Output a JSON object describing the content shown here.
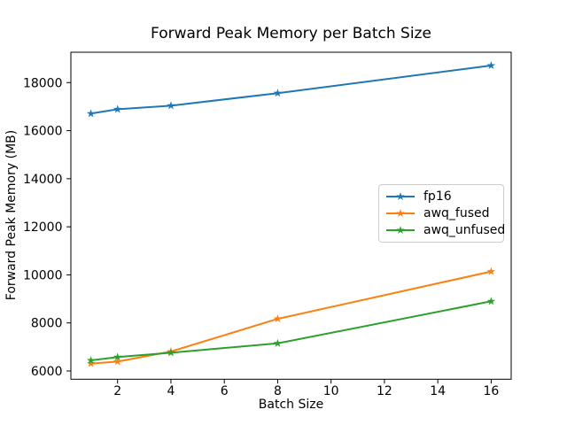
{
  "figure": {
    "background": "#ffffff"
  },
  "chart_data": {
    "type": "line",
    "title": "Forward Peak Memory per Batch Size",
    "xlabel": "Batch Size",
    "ylabel": "Forward Peak Memory (MB)",
    "x": [
      1,
      2,
      4,
      8,
      16
    ],
    "series": [
      {
        "name": "fp16",
        "color": "#1f77b4",
        "marker": "star",
        "values": [
          16710,
          16890,
          17040,
          17560,
          18710
        ]
      },
      {
        "name": "awq_fused",
        "color": "#ff7f0e",
        "marker": "star",
        "values": [
          6310,
          6390,
          6810,
          8170,
          10140
        ]
      },
      {
        "name": "awq_unfused",
        "color": "#2ca02c",
        "marker": "star",
        "values": [
          6440,
          6580,
          6760,
          7150,
          8900
        ]
      }
    ],
    "x_ticks": [
      2,
      4,
      6,
      8,
      10,
      12,
      14,
      16
    ],
    "y_ticks": [
      6000,
      8000,
      10000,
      12000,
      14000,
      16000,
      18000
    ],
    "xlim": [
      0.25,
      16.75
    ],
    "ylim": [
      5657,
      19263
    ],
    "grid": false,
    "legend_position": "center right",
    "axis_color": "#000000"
  }
}
